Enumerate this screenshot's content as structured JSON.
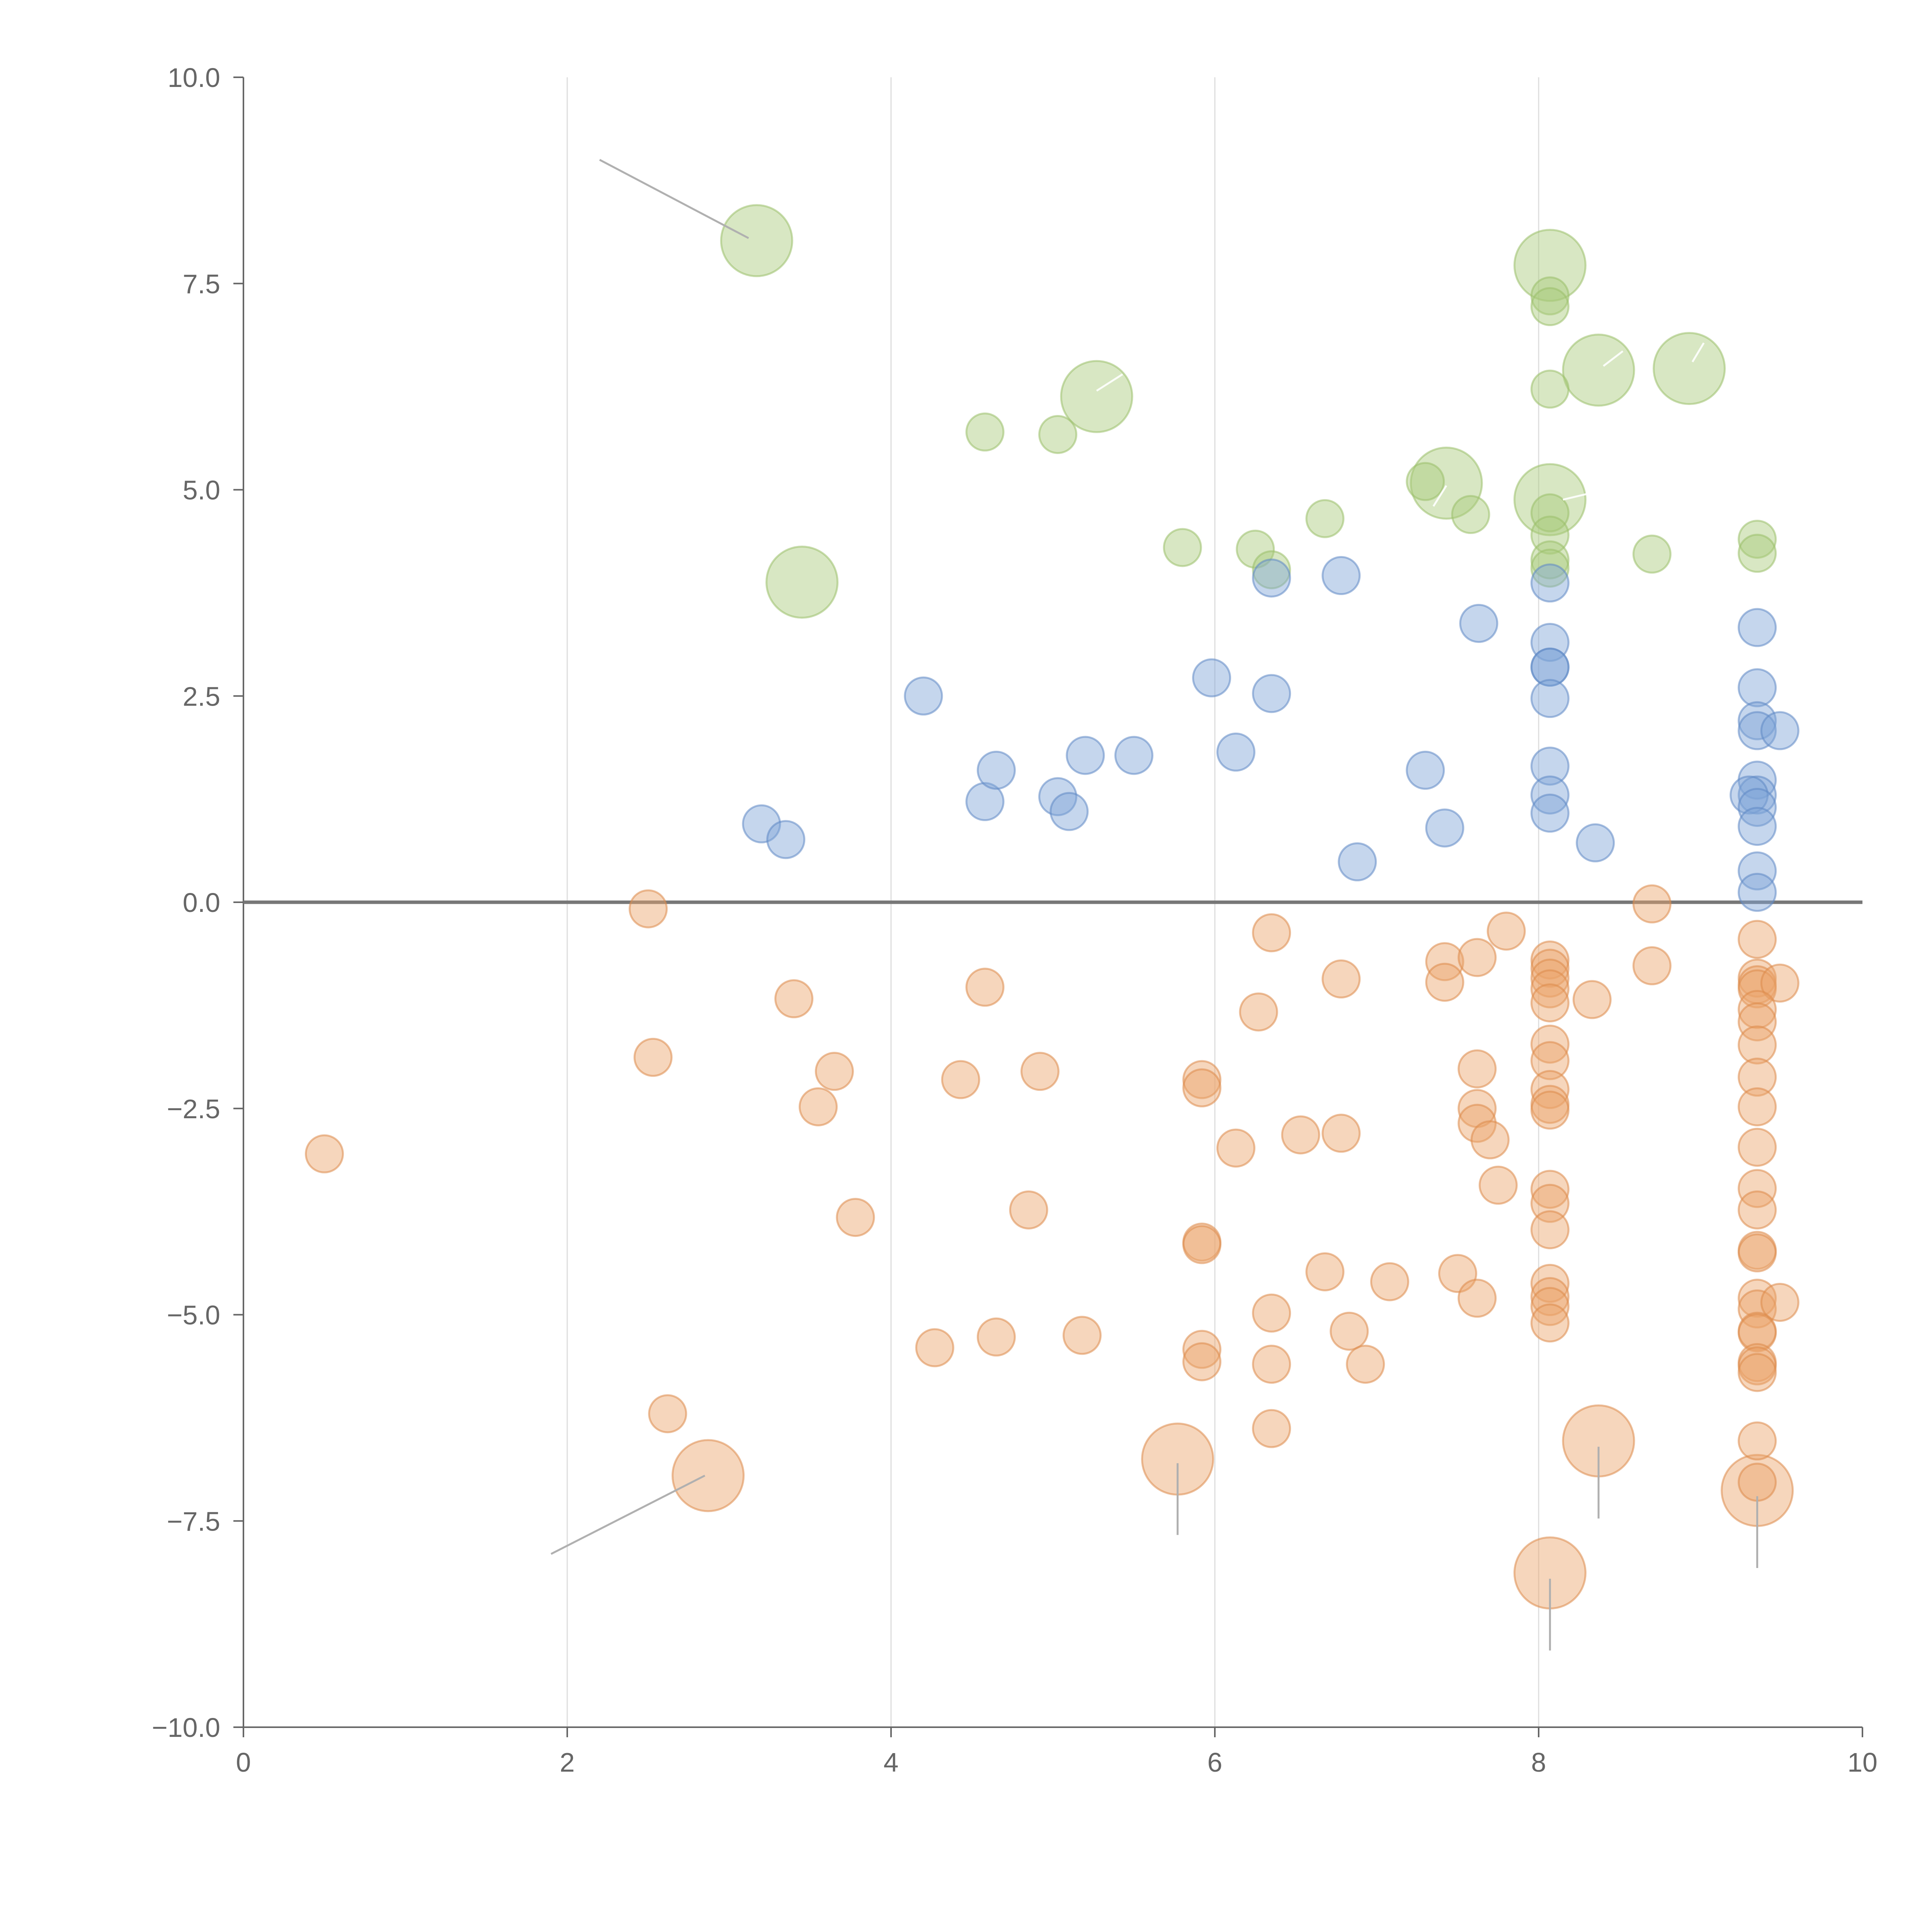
{
  "chart_data": {
    "type": "scatter",
    "title": "",
    "xlabel": "",
    "ylabel": "",
    "xlim": [
      0,
      10
    ],
    "ylim": [
      -10,
      10
    ],
    "x_ticks": [
      0,
      2,
      4,
      6,
      8,
      10
    ],
    "y_ticks": [
      10,
      7.5,
      5,
      2.5,
      0,
      -2.5,
      -5,
      -7.5,
      -10
    ],
    "x_tick_labels": [
      "0",
      "2",
      "4",
      "6",
      "8",
      "10"
    ],
    "y_tick_labels": [
      "10.0",
      "7.5",
      "5.0",
      "2.5",
      "0.0",
      "−2.5",
      "−5.0",
      "−7.5",
      "−10.0"
    ],
    "grid": "vertical",
    "zero_line": true,
    "series": [
      {
        "name": "green",
        "color": "#a9c97a",
        "stroke": "#9bbf6a",
        "points": [
          [
            3.17,
            8.02,
            2
          ],
          [
            3.45,
            3.88,
            2
          ],
          [
            5.27,
            6.13,
            2
          ],
          [
            8.07,
            7.72,
            2
          ],
          [
            8.37,
            6.45,
            2
          ],
          [
            8.93,
            6.47,
            2
          ],
          [
            7.43,
            5.08,
            2
          ],
          [
            8.07,
            4.88,
            2
          ],
          [
            8.07,
            7.35,
            1
          ],
          [
            8.07,
            7.22,
            1
          ],
          [
            8.07,
            6.22,
            1
          ],
          [
            4.58,
            5.7,
            1
          ],
          [
            5.03,
            5.67,
            1
          ],
          [
            7.3,
            5.1,
            1
          ],
          [
            7.58,
            4.7,
            1
          ],
          [
            8.07,
            4.72,
            1
          ],
          [
            6.68,
            4.65,
            1
          ],
          [
            8.07,
            4.45,
            1
          ],
          [
            5.8,
            4.3,
            1
          ],
          [
            6.25,
            4.28,
            1
          ],
          [
            6.35,
            4.03,
            1
          ],
          [
            8.07,
            4.15,
            1
          ],
          [
            8.07,
            4.05,
            1
          ],
          [
            8.7,
            4.22,
            1
          ],
          [
            9.35,
            4.4,
            1
          ],
          [
            9.35,
            4.23,
            1
          ]
        ]
      },
      {
        "name": "blue",
        "color": "#7ea3d6",
        "stroke": "#5f89c4",
        "points": [
          [
            3.2,
            0.95,
            1
          ],
          [
            3.35,
            0.76,
            1
          ],
          [
            4.2,
            2.5,
            1
          ],
          [
            4.58,
            1.22,
            1
          ],
          [
            4.65,
            1.6,
            1
          ],
          [
            5.03,
            1.28,
            1
          ],
          [
            5.1,
            1.1,
            1
          ],
          [
            5.2,
            1.78,
            1
          ],
          [
            5.5,
            1.78,
            1
          ],
          [
            5.98,
            2.72,
            1
          ],
          [
            6.13,
            1.82,
            1
          ],
          [
            6.35,
            2.53,
            1
          ],
          [
            6.35,
            3.93,
            1
          ],
          [
            6.78,
            3.96,
            1
          ],
          [
            6.88,
            0.49,
            1
          ],
          [
            7.3,
            1.6,
            1
          ],
          [
            7.42,
            0.9,
            1
          ],
          [
            7.63,
            3.38,
            1
          ],
          [
            8.07,
            3.87,
            1
          ],
          [
            8.07,
            3.15,
            1
          ],
          [
            8.07,
            2.85,
            1
          ],
          [
            8.07,
            2.85,
            1
          ],
          [
            8.07,
            2.47,
            1
          ],
          [
            8.07,
            1.65,
            1
          ],
          [
            8.07,
            1.3,
            1
          ],
          [
            8.07,
            1.08,
            1
          ],
          [
            8.35,
            0.72,
            1
          ],
          [
            9.35,
            3.33,
            1
          ],
          [
            9.35,
            2.6,
            1
          ],
          [
            9.35,
            2.2,
            1
          ],
          [
            9.35,
            2.08,
            1
          ],
          [
            9.49,
            2.08,
            1
          ],
          [
            9.35,
            1.48,
            1
          ],
          [
            9.35,
            1.3,
            1
          ],
          [
            9.3,
            1.3,
            1
          ],
          [
            9.35,
            1.15,
            1
          ],
          [
            9.35,
            0.92,
            1
          ],
          [
            9.35,
            0.38,
            1
          ],
          [
            9.35,
            0.12,
            1
          ]
        ]
      },
      {
        "name": "orange",
        "color": "#eba36a",
        "stroke": "#dd8a4a",
        "points": [
          [
            2.87,
            -6.95,
            2
          ],
          [
            5.77,
            -6.75,
            2
          ],
          [
            8.37,
            -6.53,
            2
          ],
          [
            9.35,
            -7.13,
            2
          ],
          [
            8.07,
            -8.13,
            2
          ],
          [
            0.5,
            -3.05,
            1
          ],
          [
            2.5,
            -0.08,
            1
          ],
          [
            2.53,
            -1.88,
            1
          ],
          [
            2.62,
            -6.2,
            1
          ],
          [
            3.4,
            -1.17,
            1
          ],
          [
            3.55,
            -2.48,
            1
          ],
          [
            3.65,
            -2.05,
            1
          ],
          [
            3.78,
            -3.82,
            1
          ],
          [
            4.27,
            -5.4,
            1
          ],
          [
            4.43,
            -2.15,
            1
          ],
          [
            4.58,
            -1.03,
            1
          ],
          [
            4.65,
            -5.27,
            1
          ],
          [
            4.85,
            -3.73,
            1
          ],
          [
            4.92,
            -2.05,
            1
          ],
          [
            5.18,
            -5.25,
            1
          ],
          [
            5.92,
            -2.15,
            1
          ],
          [
            5.92,
            -2.25,
            1
          ],
          [
            5.92,
            -4.12,
            1
          ],
          [
            5.92,
            -4.15,
            1
          ],
          [
            5.92,
            -5.42,
            1
          ],
          [
            5.92,
            -5.57,
            1
          ],
          [
            6.13,
            -2.98,
            1
          ],
          [
            6.27,
            -1.33,
            1
          ],
          [
            6.35,
            -0.37,
            1
          ],
          [
            6.35,
            -4.98,
            1
          ],
          [
            6.35,
            -5.6,
            1
          ],
          [
            6.35,
            -6.38,
            1
          ],
          [
            6.53,
            -2.82,
            1
          ],
          [
            6.68,
            -4.48,
            1
          ],
          [
            6.78,
            -0.93,
            1
          ],
          [
            6.78,
            -2.8,
            1
          ],
          [
            6.83,
            -5.2,
            1
          ],
          [
            6.93,
            -5.6,
            1
          ],
          [
            7.08,
            -4.6,
            1
          ],
          [
            7.42,
            -0.72,
            1
          ],
          [
            7.42,
            -0.97,
            1
          ],
          [
            7.5,
            -4.5,
            1
          ],
          [
            7.62,
            -0.67,
            1
          ],
          [
            7.62,
            -2.02,
            1
          ],
          [
            7.62,
            -2.5,
            1
          ],
          [
            7.62,
            -2.68,
            1
          ],
          [
            7.62,
            -4.8,
            1
          ],
          [
            7.7,
            -2.88,
            1
          ],
          [
            7.75,
            -3.43,
            1
          ],
          [
            7.8,
            -0.35,
            1
          ],
          [
            8.07,
            -0.7,
            1
          ],
          [
            8.07,
            -0.8,
            1
          ],
          [
            8.07,
            -0.92,
            1
          ],
          [
            8.07,
            -1.05,
            1
          ],
          [
            8.07,
            -1.22,
            1
          ],
          [
            8.07,
            -1.72,
            1
          ],
          [
            8.07,
            -1.92,
            1
          ],
          [
            8.07,
            -2.27,
            1
          ],
          [
            8.07,
            -2.45,
            1
          ],
          [
            8.07,
            -2.52,
            1
          ],
          [
            8.07,
            -3.48,
            1
          ],
          [
            8.07,
            -3.65,
            1
          ],
          [
            8.07,
            -3.97,
            1
          ],
          [
            8.07,
            -4.62,
            1
          ],
          [
            8.07,
            -4.78,
            1
          ],
          [
            8.07,
            -4.9,
            1
          ],
          [
            8.07,
            -5.1,
            1
          ],
          [
            8.33,
            -1.18,
            1
          ],
          [
            8.7,
            -0.02,
            1
          ],
          [
            8.7,
            -0.77,
            1
          ],
          [
            9.35,
            -0.45,
            1
          ],
          [
            9.35,
            -0.92,
            1
          ],
          [
            9.35,
            -1.0,
            1
          ],
          [
            9.35,
            -1.05,
            1
          ],
          [
            9.49,
            -0.98,
            1
          ],
          [
            9.35,
            -1.3,
            1
          ],
          [
            9.35,
            -1.45,
            1
          ],
          [
            9.35,
            -1.73,
            1
          ],
          [
            9.35,
            -2.12,
            1
          ],
          [
            9.35,
            -2.48,
            1
          ],
          [
            9.35,
            -2.97,
            1
          ],
          [
            9.35,
            -3.47,
            1
          ],
          [
            9.35,
            -3.73,
            1
          ],
          [
            9.35,
            -4.22,
            1
          ],
          [
            9.35,
            -4.25,
            1
          ],
          [
            9.35,
            -4.8,
            1
          ],
          [
            9.35,
            -4.93,
            1
          ],
          [
            9.35,
            -5.2,
            1
          ],
          [
            9.35,
            -5.22,
            1
          ],
          [
            9.49,
            -4.85,
            1
          ],
          [
            9.35,
            -5.58,
            1
          ],
          [
            9.35,
            -5.62,
            1
          ],
          [
            9.35,
            -5.7,
            1
          ],
          [
            9.35,
            -6.53,
            1
          ],
          [
            9.35,
            -7.03,
            1
          ]
        ]
      }
    ],
    "annotations": [
      {
        "from": [
          2.2,
          9.0
        ],
        "to": [
          3.12,
          8.05
        ],
        "color": "#b0b0b0"
      },
      {
        "from": [
          1.9,
          -7.9
        ],
        "to": [
          2.85,
          -6.95
        ],
        "color": "#b0b0b0"
      },
      {
        "from": [
          5.77,
          -6.8
        ],
        "to": [
          5.77,
          -7.67
        ],
        "color": "#b0b0b0"
      },
      {
        "from": [
          8.37,
          -6.6
        ],
        "to": [
          8.37,
          -7.47
        ],
        "color": "#b0b0b0"
      },
      {
        "from": [
          9.35,
          -7.2
        ],
        "to": [
          9.35,
          -8.07
        ],
        "color": "#b0b0b0"
      },
      {
        "from": [
          8.07,
          -8.2
        ],
        "to": [
          8.07,
          -9.07
        ],
        "color": "#b0b0b0"
      },
      {
        "from": [
          5.27,
          6.2
        ],
        "to": [
          5.43,
          6.4
        ],
        "color": "#ffffff"
      },
      {
        "from": [
          8.4,
          6.5
        ],
        "to": [
          8.52,
          6.68
        ],
        "color": "#ffffff"
      },
      {
        "from": [
          8.95,
          6.55
        ],
        "to": [
          9.02,
          6.78
        ],
        "color": "#ffffff"
      },
      {
        "from": [
          8.15,
          4.88
        ],
        "to": [
          8.3,
          4.95
        ],
        "color": "#ffffff"
      },
      {
        "from": [
          7.43,
          5.05
        ],
        "to": [
          7.35,
          4.8
        ],
        "color": "#ffffff"
      }
    ]
  }
}
